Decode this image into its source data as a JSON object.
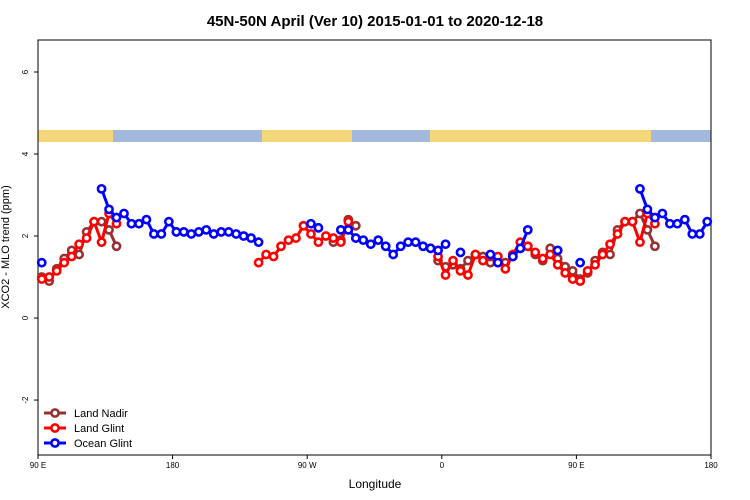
{
  "chart_data": {
    "type": "line",
    "title": "45N-50N April (Ver 10)   2015-01-01 to 2020-12-18",
    "x_label": "Longitude",
    "y_label": "XCO2 - MLO trend (ppm)",
    "xlim": [
      90,
      540
    ],
    "xticks": [
      {
        "value": 90,
        "label": "90 E"
      },
      {
        "value": 180,
        "label": "180"
      },
      {
        "value": 270,
        "label": "90 W"
      },
      {
        "value": 360,
        "label": "0"
      },
      {
        "value": 450,
        "label": "90 E"
      },
      {
        "value": 540,
        "label": "180"
      }
    ],
    "ylim": [
      -3.34,
      6.78
    ],
    "yticks": [
      -2,
      0,
      2,
      4,
      6
    ],
    "legend": "bottom-left",
    "x": [
      92.5,
      97.5,
      102.5,
      107.5,
      112.5,
      117.5,
      122.5,
      127.5,
      132.5,
      137.5,
      142.5,
      147.5,
      152.5,
      157.5,
      162.5,
      167.5,
      172.5,
      177.5,
      182.5,
      187.5,
      192.5,
      197.5,
      202.5,
      207.5,
      212.5,
      217.5,
      222.5,
      227.5,
      232.5,
      237.5,
      242.5,
      247.5,
      252.5,
      257.5,
      262.5,
      267.5,
      272.5,
      277.5,
      282.5,
      287.5,
      292.5,
      297.5,
      302.5,
      307.5,
      312.5,
      317.5,
      322.5,
      327.5,
      332.5,
      337.5,
      342.5,
      347.5,
      352.5,
      357.5,
      362.5,
      367.5,
      372.5,
      377.5,
      382.5,
      387.5,
      392.5,
      397.5,
      402.5,
      407.5,
      412.5,
      417.5,
      422.5,
      427.5,
      432.5,
      437.5,
      442.5,
      447.5,
      452.5,
      457.5,
      462.5,
      467.5,
      472.5,
      477.5,
      482.5,
      487.5,
      492.5,
      497.5,
      502.5,
      507.5,
      512.5,
      517.5,
      522.5,
      527.5,
      532.5,
      537.5
    ],
    "series": [
      {
        "name": "Land Nadir",
        "color": "#983232",
        "values": [
          1.0,
          0.9,
          1.2,
          1.45,
          1.65,
          1.55,
          2.1,
          2.35,
          2.35,
          2.15,
          1.75,
          null,
          null,
          null,
          null,
          null,
          null,
          null,
          null,
          null,
          null,
          null,
          null,
          null,
          null,
          null,
          null,
          null,
          null,
          null,
          null,
          null,
          null,
          null,
          null,
          null,
          null,
          null,
          null,
          1.85,
          1.9,
          2.4,
          2.25,
          null,
          null,
          null,
          null,
          null,
          null,
          null,
          null,
          null,
          null,
          1.4,
          1.25,
          1.3,
          1.2,
          1.4,
          1.55,
          1.5,
          1.35,
          1.4,
          1.35,
          1.5,
          1.7,
          1.75,
          1.55,
          1.4,
          1.7,
          1.45,
          1.25,
          1.15,
          0.95,
          1.1,
          1.4,
          1.6,
          1.55,
          2.15,
          2.35,
          2.35,
          2.55,
          2.15,
          1.75,
          null,
          null,
          null,
          null,
          null,
          null,
          null
        ]
      },
      {
        "name": "Land Glint",
        "color": "#FF0000",
        "values": [
          0.95,
          1.0,
          1.15,
          1.35,
          1.5,
          1.8,
          1.95,
          2.35,
          1.85,
          2.55,
          2.3,
          null,
          null,
          null,
          null,
          null,
          null,
          null,
          null,
          null,
          null,
          null,
          null,
          null,
          null,
          null,
          null,
          null,
          null,
          1.35,
          1.55,
          1.5,
          1.75,
          1.9,
          1.95,
          2.25,
          2.05,
          1.85,
          2.0,
          1.95,
          1.85,
          2.35,
          null,
          null,
          null,
          null,
          null,
          null,
          null,
          null,
          null,
          null,
          null,
          1.5,
          1.05,
          1.4,
          1.15,
          1.05,
          1.55,
          1.4,
          1.5,
          1.5,
          1.2,
          1.55,
          1.85,
          1.75,
          1.6,
          1.45,
          1.55,
          1.3,
          1.1,
          0.95,
          0.9,
          1.15,
          1.3,
          1.55,
          1.8,
          2.05,
          2.35,
          2.35,
          1.85,
          2.55,
          2.3,
          null,
          null,
          null,
          null,
          null,
          null,
          null
        ]
      },
      {
        "name": "Ocean Glint",
        "color": "#0000FF",
        "values": [
          1.35,
          null,
          null,
          null,
          null,
          null,
          null,
          null,
          3.15,
          2.65,
          2.45,
          2.55,
          2.3,
          2.3,
          2.4,
          2.05,
          2.05,
          2.35,
          2.1,
          2.1,
          2.05,
          2.1,
          2.15,
          2.05,
          2.1,
          2.1,
          2.05,
          2.0,
          1.95,
          1.85,
          null,
          null,
          null,
          null,
          null,
          null,
          2.3,
          2.2,
          null,
          null,
          2.15,
          2.15,
          1.95,
          1.9,
          1.8,
          1.9,
          1.75,
          1.55,
          1.75,
          1.85,
          1.85,
          1.75,
          1.7,
          1.65,
          1.8,
          null,
          1.6,
          null,
          null,
          null,
          1.55,
          1.35,
          null,
          1.5,
          1.7,
          2.15,
          null,
          null,
          null,
          1.65,
          null,
          null,
          1.35,
          null,
          null,
          null,
          null,
          null,
          null,
          null,
          3.15,
          2.65,
          2.45,
          2.55,
          2.3,
          2.3,
          2.4,
          2.05,
          2.05,
          2.35
        ]
      }
    ]
  }
}
